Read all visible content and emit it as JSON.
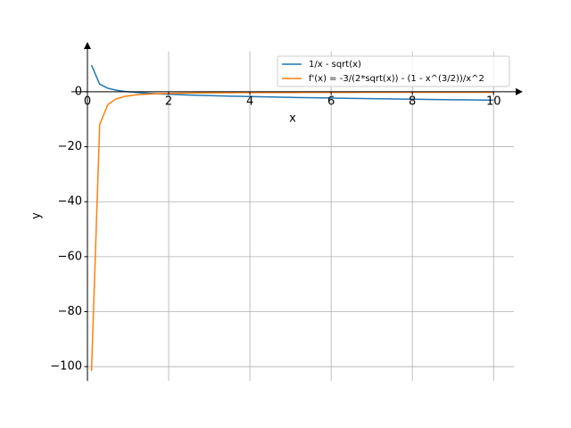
{
  "chart_data": {
    "type": "line",
    "x_label": "x",
    "y_label": "y",
    "x": [
      0.1,
      0.302,
      0.504,
      0.706,
      0.908,
      1.11,
      1.312,
      1.514,
      1.716,
      1.918,
      2.12,
      2.322,
      2.524,
      2.727,
      2.929,
      3.131,
      3.333,
      3.535,
      3.737,
      3.939,
      4.141,
      4.343,
      4.545,
      4.747,
      4.949,
      5.151,
      5.353,
      5.556,
      5.758,
      5.96,
      6.162,
      6.364,
      6.566,
      6.768,
      6.97,
      7.172,
      7.374,
      7.576,
      7.778,
      7.98,
      8.182,
      8.384,
      8.586,
      8.788,
      8.99,
      9.192,
      9.394,
      9.596,
      9.798,
      10
    ],
    "series": [
      {
        "name": "1/x - sqrt(x)",
        "color": "#1f77b4",
        "values": [
          9.68,
          2.76,
          1.27,
          0.58,
          0.15,
          -0.15,
          -0.38,
          -0.57,
          -0.73,
          -0.86,
          -0.98,
          -1.09,
          -1.19,
          -1.28,
          -1.37,
          -1.45,
          -1.53,
          -1.6,
          -1.67,
          -1.73,
          -1.79,
          -1.85,
          -1.91,
          -1.97,
          -2.02,
          -2.08,
          -2.13,
          -2.18,
          -2.23,
          -2.27,
          -2.32,
          -2.37,
          -2.41,
          -2.45,
          -2.5,
          -2.54,
          -2.58,
          -2.62,
          -2.66,
          -2.7,
          -2.74,
          -2.78,
          -2.81,
          -2.85,
          -2.89,
          -2.92,
          -2.96,
          -2.99,
          -3.03,
          -3.06
        ]
      },
      {
        "name": "f'(x) = -3/(2*sqrt(x)) - (1 - x^(3/2))/x^2",
        "color": "#ff7f0e",
        "values": [
          -101.58,
          -11.87,
          -4.64,
          -2.6,
          -1.74,
          -1.29,
          -1.02,
          -0.84,
          -0.72,
          -0.63,
          -0.57,
          -0.51,
          -0.47,
          -0.44,
          -0.41,
          -0.38,
          -0.36,
          -0.35,
          -0.33,
          -0.32,
          -0.3,
          -0.29,
          -0.28,
          -0.27,
          -0.27,
          -0.26,
          -0.25,
          -0.24,
          -0.24,
          -0.23,
          -0.23,
          -0.22,
          -0.22,
          -0.21,
          -0.21,
          -0.21,
          -0.2,
          -0.2,
          -0.2,
          -0.19,
          -0.19,
          -0.19,
          -0.18,
          -0.18,
          -0.18,
          -0.18,
          -0.17,
          -0.17,
          -0.17,
          -0.17
        ]
      }
    ],
    "xlim": [
      0,
      10.5
    ],
    "ylim": [
      -105.2,
      14.7
    ],
    "xticks": [
      0,
      2,
      4,
      6,
      8,
      10
    ],
    "yticks": [
      {
        "value": -100,
        "label": "−100"
      },
      {
        "value": -80,
        "label": "−80"
      },
      {
        "value": -60,
        "label": "−60"
      },
      {
        "value": -40,
        "label": "−40"
      },
      {
        "value": -20,
        "label": "−20"
      },
      0
    ],
    "grid": true,
    "legend": "upper right"
  }
}
